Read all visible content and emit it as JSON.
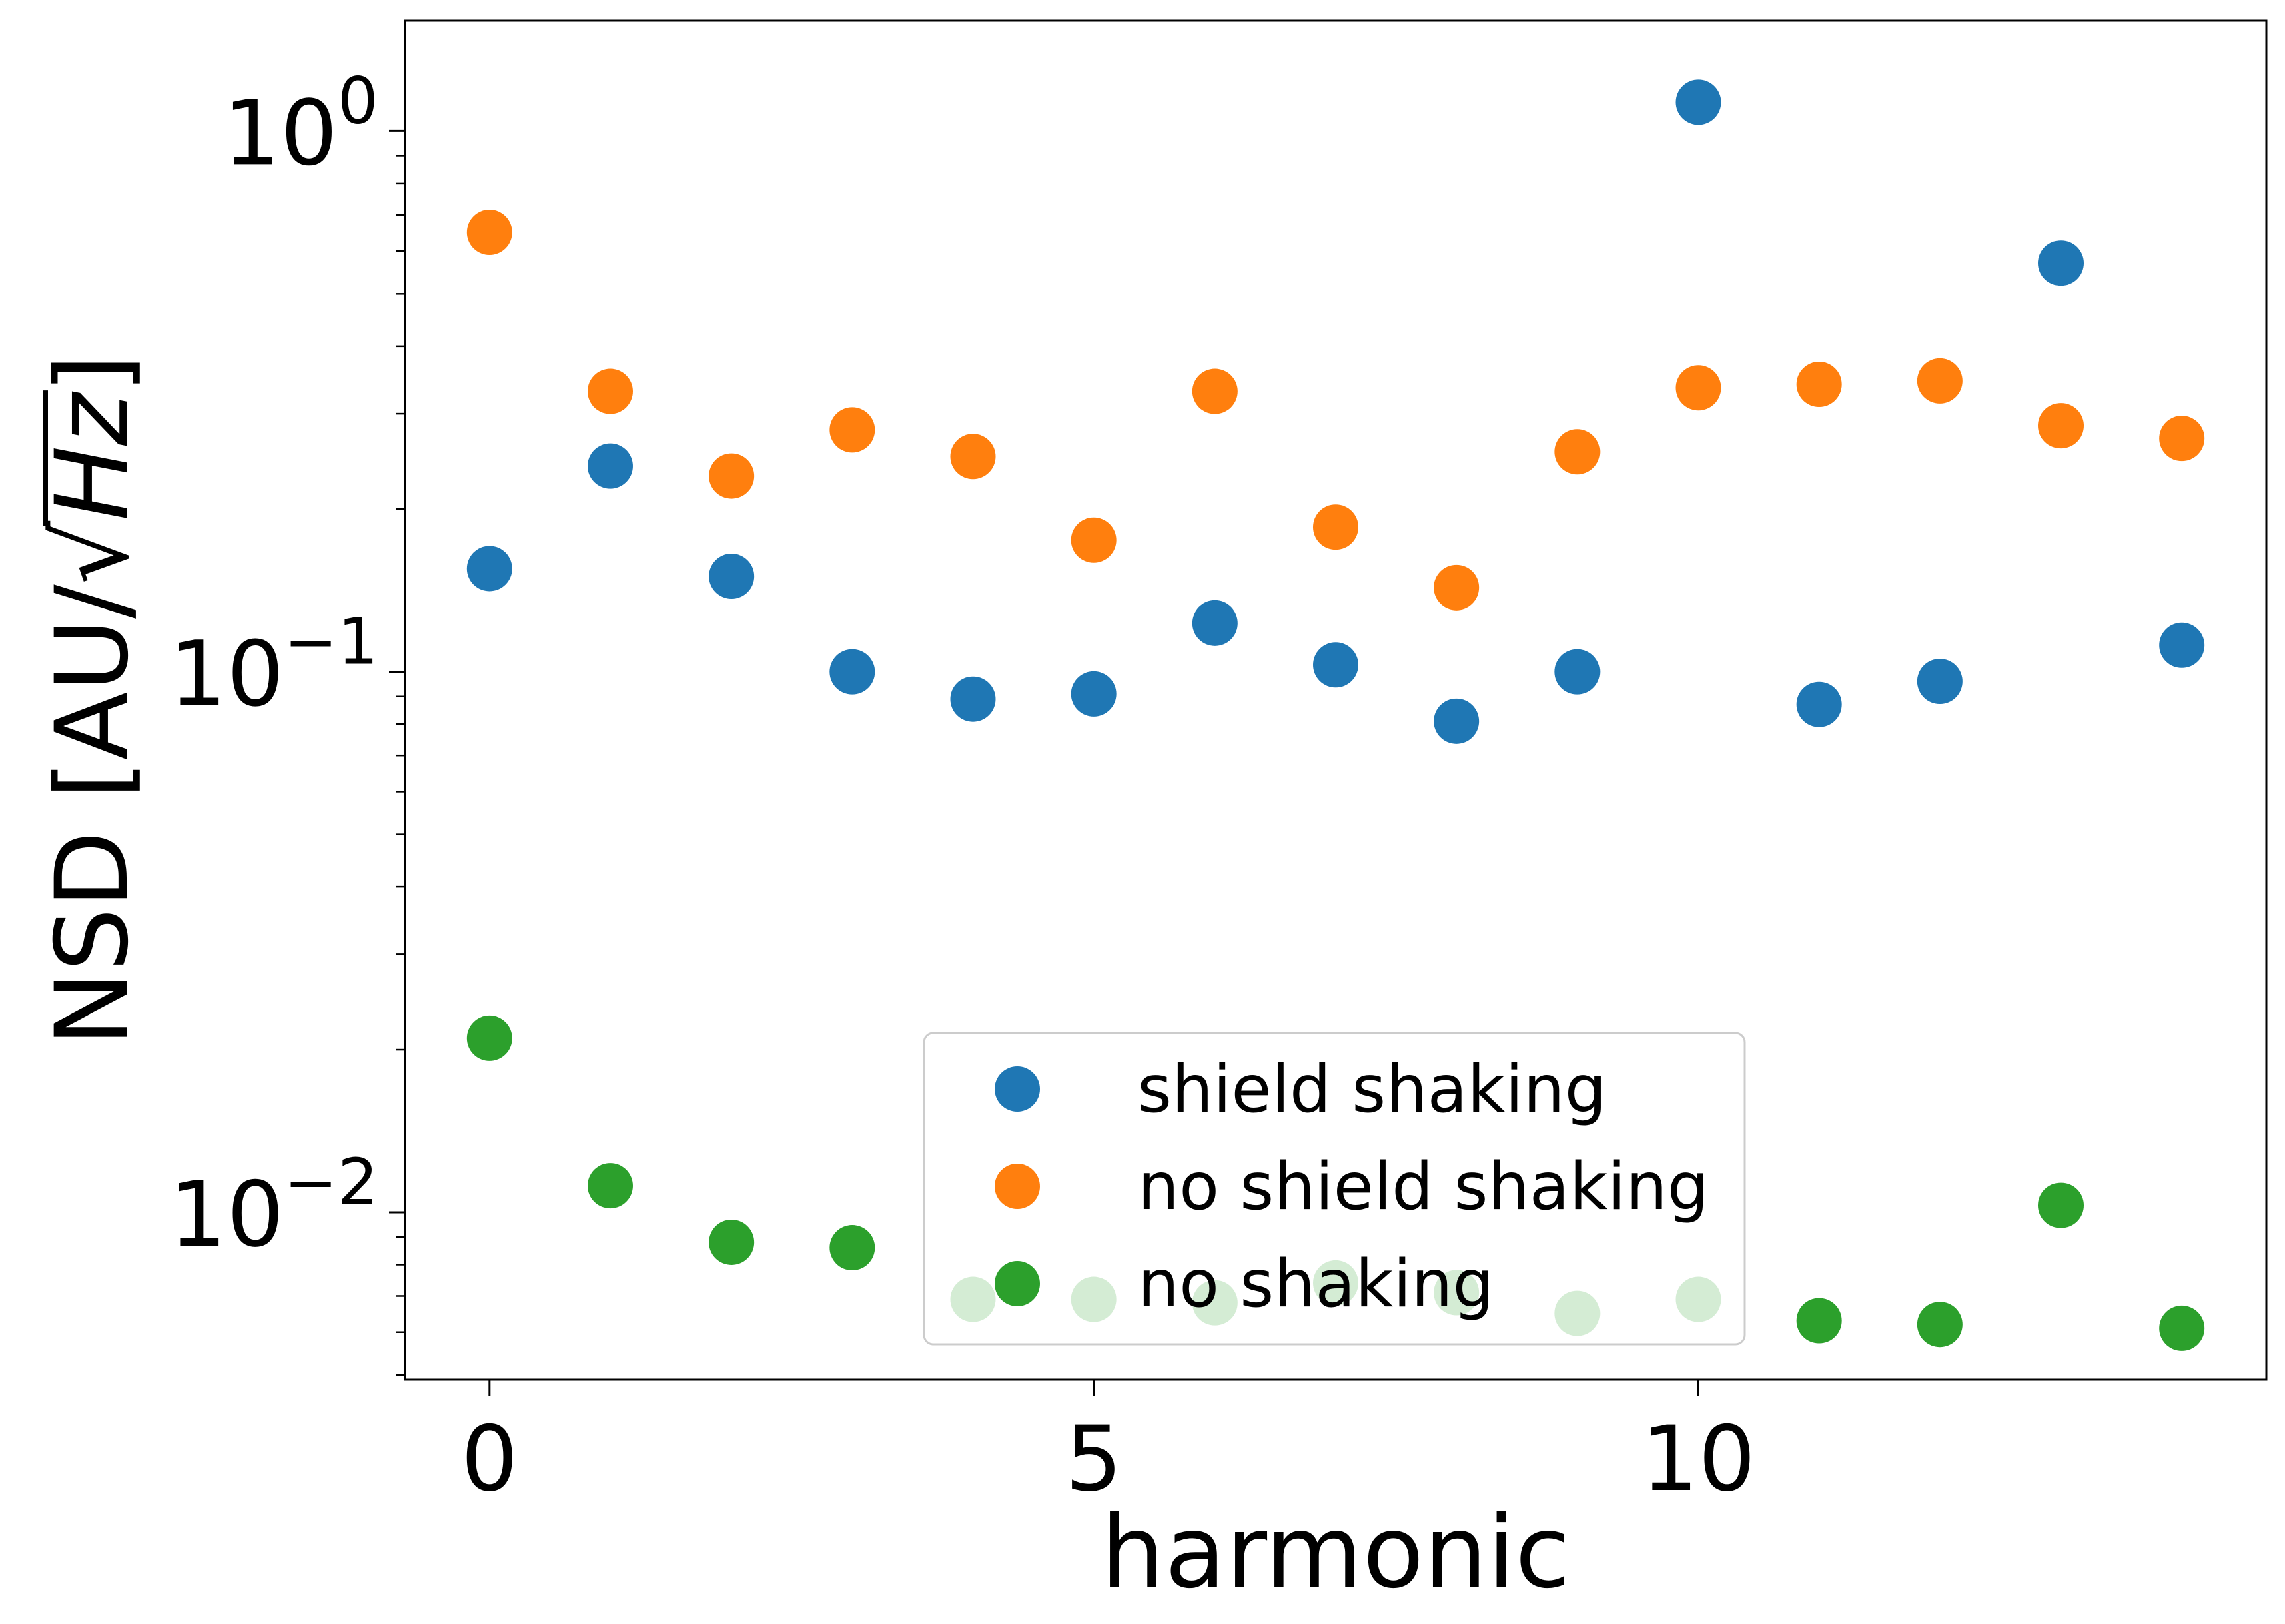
{
  "chart_data": {
    "type": "scatter",
    "title": "",
    "xlabel": "harmonic",
    "ylabel": "NSD [AU/√Hz]",
    "ylabel_parts": {
      "prefix": "NSD [AU/",
      "radicand": "Hz",
      "suffix": "]"
    },
    "yscale": "log",
    "xlim": [
      -0.7,
      14.7
    ],
    "ylim": [
      0.0049,
      1.6
    ],
    "x_ticks": [
      {
        "value": 0,
        "label": "0"
      },
      {
        "value": 5,
        "label": "5"
      },
      {
        "value": 10,
        "label": "10"
      }
    ],
    "y_ticks": [
      {
        "value": 1,
        "base": "10",
        "exp": "0"
      },
      {
        "value": 0.1,
        "base": "10",
        "exp": "−1"
      },
      {
        "value": 0.01,
        "base": "10",
        "exp": "−2"
      }
    ],
    "grid": false,
    "legend_position": "lower center",
    "x": [
      0,
      1,
      2,
      3,
      4,
      5,
      6,
      7,
      8,
      9,
      10,
      11,
      12,
      13,
      14
    ],
    "series": [
      {
        "name": "shield shaking",
        "color": "#1f77b4",
        "values": [
          0.155,
          0.24,
          0.15,
          0.1,
          0.089,
          0.091,
          0.123,
          0.103,
          0.081,
          0.1,
          1.13,
          0.087,
          0.096,
          0.57,
          0.112
        ]
      },
      {
        "name": "no shield shaking",
        "color": "#ff7f0e",
        "values": [
          0.65,
          0.33,
          0.23,
          0.28,
          0.25,
          0.175,
          0.33,
          0.185,
          0.143,
          0.255,
          0.335,
          0.34,
          0.345,
          0.285,
          0.27
        ]
      },
      {
        "name": "no shaking",
        "color": "#2ca02c",
        "values": [
          0.021,
          0.0112,
          0.0088,
          0.0086,
          0.0069,
          0.0069,
          0.0068,
          0.0074,
          0.0071,
          0.0065,
          0.0069,
          0.0063,
          0.0062,
          0.0103,
          0.0061
        ]
      }
    ]
  }
}
